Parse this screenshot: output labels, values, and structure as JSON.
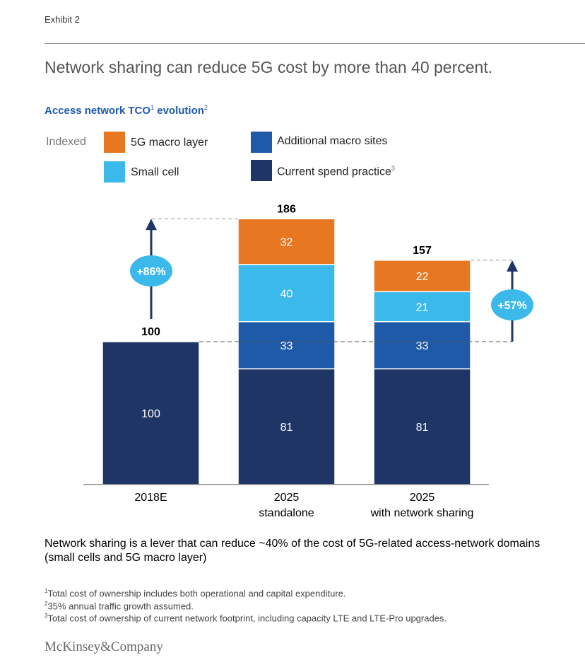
{
  "exhibit_label": "Exhibit 2",
  "title": "Network sharing can reduce 5G cost by more than 40 percent.",
  "subtitle": {
    "main": "Access network TCO",
    "sup1": "1",
    "rest": " evolution",
    "sup2": "2"
  },
  "indexed_label": "Indexed",
  "legend": [
    {
      "label": "5G macro layer",
      "sup": "",
      "color": "#e87722"
    },
    {
      "label": "Additional macro sites",
      "sup": "",
      "color": "#1e5aa8"
    },
    {
      "label": "Small cell",
      "sup": "",
      "color": "#3bb9ea"
    },
    {
      "label": "Current spend practice",
      "sup": "3",
      "color": "#1f3566"
    }
  ],
  "chart_data": {
    "type": "bar",
    "stacked": true,
    "categories": [
      [
        "2018E"
      ],
      [
        "2025",
        "standalone"
      ],
      [
        "2025",
        "with network sharing"
      ]
    ],
    "series": [
      {
        "name": "Current spend practice",
        "color": "#1f3566",
        "values": [
          100,
          81,
          81
        ]
      },
      {
        "name": "Additional macro sites",
        "color": "#1e5aa8",
        "values": [
          0,
          33,
          33
        ]
      },
      {
        "name": "Small cell",
        "color": "#3bb9ea",
        "values": [
          0,
          40,
          21
        ]
      },
      {
        "name": "5G macro layer",
        "color": "#e87722",
        "values": [
          0,
          32,
          22
        ]
      }
    ],
    "totals": [
      100,
      186,
      157
    ],
    "annotations": [
      {
        "label": "+86%",
        "from": 100,
        "to": 186,
        "color": "#3bb9ea"
      },
      {
        "label": "+57%",
        "from": 100,
        "to": 157,
        "color": "#3bb9ea"
      }
    ],
    "ylim": [
      0,
      186
    ]
  },
  "note": "Network sharing is a lever that can reduce ~40% of the cost of 5G-related access-network domains (small cells and 5G macro layer)",
  "footnotes": [
    {
      "sup": "1",
      "text": "Total cost of ownership includes both operational and capital expenditure."
    },
    {
      "sup": "2",
      "text": "35% annual traffic growth assumed."
    },
    {
      "sup": "3",
      "text": "Total cost of ownership of current network footprint, including capacity LTE and LTE-Pro upgrades."
    }
  ],
  "logo": "McKinsey&Company"
}
